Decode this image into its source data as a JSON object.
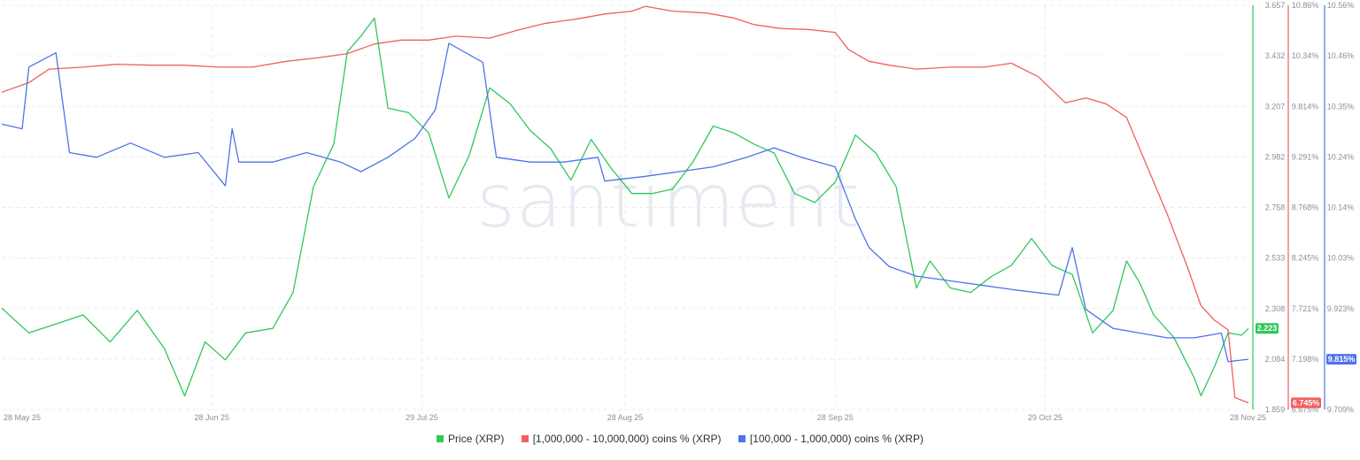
{
  "watermark": "santiment",
  "chart_data": {
    "type": "line",
    "x_ticks": [
      "28 May 25",
      "28 Jun 25",
      "29 Jul 25",
      "28 Aug 25",
      "28 Sep 25",
      "29 Oct 25",
      "28 Nov 25"
    ],
    "axes": {
      "price": {
        "ticks": [
          "3.657",
          "3.432",
          "3.207",
          "2.982",
          "2.758",
          "2.533",
          "2.308",
          "2.084",
          "1.859"
        ],
        "range": [
          1.859,
          3.657
        ],
        "color": "#2fc85a"
      },
      "large_holders": {
        "ticks": [
          "10.86%",
          "10.34%",
          "9.814%",
          "9.291%",
          "8.768%",
          "8.245%",
          "7.721%",
          "7.198%",
          "6.675%"
        ],
        "range": [
          6.675,
          10.86
        ],
        "color": "#f15f5f"
      },
      "mid_holders": {
        "ticks": [
          "10.56%",
          "10.46%",
          "10.35%",
          "10.24%",
          "10.14%",
          "10.03%",
          "9.923%",
          "9.815%",
          "9.709%"
        ],
        "range": [
          9.709,
          10.56
        ],
        "color": "#4e73ea"
      }
    },
    "series": [
      {
        "key": "price",
        "name": "Price (XRP)",
        "axis": "price",
        "color": "#2fc85a",
        "last_value": "2.223",
        "points": [
          [
            "28 May 25",
            2.31
          ],
          [
            "01 Jun 25",
            2.2
          ],
          [
            "05 Jun 25",
            2.24
          ],
          [
            "09 Jun 25",
            2.28
          ],
          [
            "13 Jun 25",
            2.16
          ],
          [
            "17 Jun 25",
            2.3
          ],
          [
            "21 Jun 25",
            2.13
          ],
          [
            "24 Jun 25",
            1.92
          ],
          [
            "27 Jun 25",
            2.16
          ],
          [
            "30 Jun 25",
            2.08
          ],
          [
            "03 Jul 25",
            2.2
          ],
          [
            "07 Jul 25",
            2.22
          ],
          [
            "10 Jul 25",
            2.38
          ],
          [
            "13 Jul 25",
            2.85
          ],
          [
            "16 Jul 25",
            3.04
          ],
          [
            "18 Jul 25",
            3.45
          ],
          [
            "20 Jul 25",
            3.52
          ],
          [
            "22 Jul 25",
            3.6
          ],
          [
            "24 Jul 25",
            3.2
          ],
          [
            "27 Jul 25",
            3.18
          ],
          [
            "30 Jul 25",
            3.09
          ],
          [
            "02 Aug 25",
            2.8
          ],
          [
            "05 Aug 25",
            2.99
          ],
          [
            "08 Aug 25",
            3.29
          ],
          [
            "11 Aug 25",
            3.22
          ],
          [
            "14 Aug 25",
            3.1
          ],
          [
            "17 Aug 25",
            3.02
          ],
          [
            "20 Aug 25",
            2.88
          ],
          [
            "23 Aug 25",
            3.06
          ],
          [
            "26 Aug 25",
            2.93
          ],
          [
            "29 Aug 25",
            2.82
          ],
          [
            "01 Sep 25",
            2.82
          ],
          [
            "04 Sep 25",
            2.84
          ],
          [
            "07 Sep 25",
            2.96
          ],
          [
            "10 Sep 25",
            3.12
          ],
          [
            "13 Sep 25",
            3.09
          ],
          [
            "16 Sep 25",
            3.04
          ],
          [
            "19 Sep 25",
            3.0
          ],
          [
            "22 Sep 25",
            2.82
          ],
          [
            "25 Sep 25",
            2.78
          ],
          [
            "28 Sep 25",
            2.87
          ],
          [
            "01 Oct 25",
            3.08
          ],
          [
            "04 Oct 25",
            3.0
          ],
          [
            "07 Oct 25",
            2.85
          ],
          [
            "10 Oct 25",
            2.4
          ],
          [
            "12 Oct 25",
            2.52
          ],
          [
            "15 Oct 25",
            2.4
          ],
          [
            "18 Oct 25",
            2.38
          ],
          [
            "21 Oct 25",
            2.45
          ],
          [
            "24 Oct 25",
            2.5
          ],
          [
            "27 Oct 25",
            2.62
          ],
          [
            "30 Oct 25",
            2.5
          ],
          [
            "02 Nov 25",
            2.46
          ],
          [
            "05 Nov 25",
            2.2
          ],
          [
            "08 Nov 25",
            2.3
          ],
          [
            "10 Nov 25",
            2.52
          ],
          [
            "12 Nov 25",
            2.42
          ],
          [
            "14 Nov 25",
            2.28
          ],
          [
            "17 Nov 25",
            2.18
          ],
          [
            "20 Nov 25",
            2.0
          ],
          [
            "21 Nov 25",
            1.92
          ],
          [
            "23 Nov 25",
            2.05
          ],
          [
            "25 Nov 25",
            2.2
          ],
          [
            "27 Nov 25",
            2.19
          ],
          [
            "28 Nov 25",
            2.22
          ]
        ]
      },
      {
        "key": "large_holders",
        "name": "[1,000,000 - 10,000,000) coins % (XRP)",
        "axis": "large_holders",
        "color": "#f15f5f",
        "last_value": "6.745%",
        "points": [
          [
            "28 May 25",
            9.96
          ],
          [
            "01 Jun 25",
            10.06
          ],
          [
            "04 Jun 25",
            10.2
          ],
          [
            "09 Jun 25",
            10.22
          ],
          [
            "14 Jun 25",
            10.25
          ],
          [
            "19 Jun 25",
            10.24
          ],
          [
            "24 Jun 25",
            10.24
          ],
          [
            "29 Jun 25",
            10.22
          ],
          [
            "04 Jul 25",
            10.22
          ],
          [
            "09 Jul 25",
            10.28
          ],
          [
            "14 Jul 25",
            10.32
          ],
          [
            "18 Jul 25",
            10.36
          ],
          [
            "22 Jul 25",
            10.46
          ],
          [
            "26 Jul 25",
            10.5
          ],
          [
            "30 Jul 25",
            10.5
          ],
          [
            "03 Aug 25",
            10.54
          ],
          [
            "08 Aug 25",
            10.52
          ],
          [
            "12 Aug 25",
            10.6
          ],
          [
            "16 Aug 25",
            10.67
          ],
          [
            "21 Aug 25",
            10.72
          ],
          [
            "25 Aug 25",
            10.77
          ],
          [
            "29 Aug 25",
            10.8
          ],
          [
            "31 Aug 25",
            10.85
          ],
          [
            "04 Sep 25",
            10.8
          ],
          [
            "09 Sep 25",
            10.78
          ],
          [
            "13 Sep 25",
            10.73
          ],
          [
            "16 Sep 25",
            10.66
          ],
          [
            "20 Sep 25",
            10.62
          ],
          [
            "24 Sep 25",
            10.61
          ],
          [
            "28 Sep 25",
            10.58
          ],
          [
            "30 Sep 25",
            10.4
          ],
          [
            "03 Oct 25",
            10.28
          ],
          [
            "06 Oct 25",
            10.24
          ],
          [
            "10 Oct 25",
            10.2
          ],
          [
            "15 Oct 25",
            10.22
          ],
          [
            "20 Oct 25",
            10.22
          ],
          [
            "24 Oct 25",
            10.26
          ],
          [
            "28 Oct 25",
            10.12
          ],
          [
            "01 Nov 25",
            9.85
          ],
          [
            "04 Nov 25",
            9.9
          ],
          [
            "07 Nov 25",
            9.84
          ],
          [
            "10 Nov 25",
            9.7
          ],
          [
            "13 Nov 25",
            9.2
          ],
          [
            "16 Nov 25",
            8.7
          ],
          [
            "19 Nov 25",
            8.15
          ],
          [
            "21 Nov 25",
            7.75
          ],
          [
            "23 Nov 25",
            7.6
          ],
          [
            "25 Nov 25",
            7.5
          ],
          [
            "26 Nov 25",
            6.8
          ],
          [
            "28 Nov 25",
            6.745
          ]
        ]
      },
      {
        "key": "mid_holders",
        "name": "[100,000 - 1,000,000) coins % (XRP)",
        "axis": "mid_holders",
        "color": "#4e73ea",
        "last_value": "9.815%",
        "points": [
          [
            "28 May 25",
            10.31
          ],
          [
            "31 May 25",
            10.3
          ],
          [
            "01 Jun 25",
            10.43
          ],
          [
            "05 Jun 25",
            10.46
          ],
          [
            "07 Jun 25",
            10.25
          ],
          [
            "11 Jun 25",
            10.24
          ],
          [
            "16 Jun 25",
            10.27
          ],
          [
            "21 Jun 25",
            10.24
          ],
          [
            "26 Jun 25",
            10.25
          ],
          [
            "30 Jun 25",
            10.18
          ],
          [
            "01 Jul 25",
            10.3
          ],
          [
            "02 Jul 25",
            10.23
          ],
          [
            "07 Jul 25",
            10.23
          ],
          [
            "12 Jul 25",
            10.25
          ],
          [
            "17 Jul 25",
            10.23
          ],
          [
            "20 Jul 25",
            10.21
          ],
          [
            "24 Jul 25",
            10.24
          ],
          [
            "28 Jul 25",
            10.28
          ],
          [
            "31 Jul 25",
            10.34
          ],
          [
            "02 Aug 25",
            10.48
          ],
          [
            "07 Aug 25",
            10.44
          ],
          [
            "09 Aug 25",
            10.24
          ],
          [
            "14 Aug 25",
            10.23
          ],
          [
            "19 Aug 25",
            10.23
          ],
          [
            "24 Aug 25",
            10.24
          ],
          [
            "25 Aug 25",
            10.19
          ],
          [
            "31 Aug 25",
            10.2
          ],
          [
            "05 Sep 25",
            10.21
          ],
          [
            "10 Sep 25",
            10.22
          ],
          [
            "15 Sep 25",
            10.24
          ],
          [
            "19 Sep 25",
            10.26
          ],
          [
            "23 Sep 25",
            10.24
          ],
          [
            "28 Sep 25",
            10.22
          ],
          [
            "01 Oct 25",
            10.11
          ],
          [
            "03 Oct 25",
            10.05
          ],
          [
            "06 Oct 25",
            10.01
          ],
          [
            "10 Oct 25",
            9.99
          ],
          [
            "15 Oct 25",
            9.98
          ],
          [
            "20 Oct 25",
            9.97
          ],
          [
            "25 Oct 25",
            9.96
          ],
          [
            "31 Oct 25",
            9.95
          ],
          [
            "02 Nov 25",
            10.05
          ],
          [
            "04 Nov 25",
            9.92
          ],
          [
            "08 Nov 25",
            9.88
          ],
          [
            "12 Nov 25",
            9.87
          ],
          [
            "16 Nov 25",
            9.86
          ],
          [
            "20 Nov 25",
            9.86
          ],
          [
            "24 Nov 25",
            9.87
          ],
          [
            "25 Nov 25",
            9.81
          ],
          [
            "28 Nov 25",
            9.815
          ]
        ]
      }
    ],
    "grid": true,
    "legend_position": "bottom-center"
  }
}
